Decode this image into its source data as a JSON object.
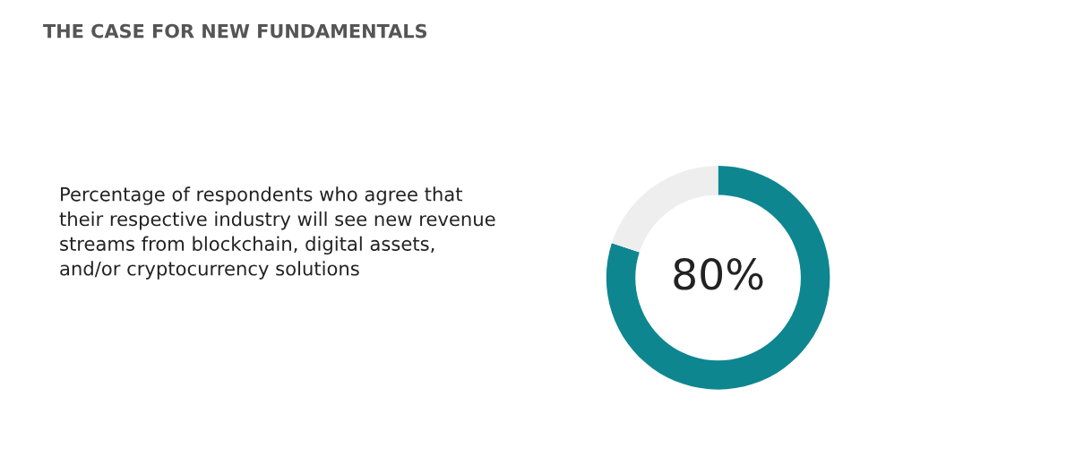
{
  "chart_data": {
    "type": "donut",
    "title": "THE CASE FOR NEW FUNDAMENTALS",
    "categories": [
      null,
      null
    ],
    "values": [
      80,
      20
    ],
    "colors": [
      "#0e8690",
      "#eeeeee"
    ],
    "value_labels": [
      "80%",
      null
    ],
    "annotations": [
      "Percentage of respondents who agree that\ntheir respective industry will see new revenue\nstreams from blockchain, digital assets,\nand/or cryptocurrency solutions"
    ]
  }
}
